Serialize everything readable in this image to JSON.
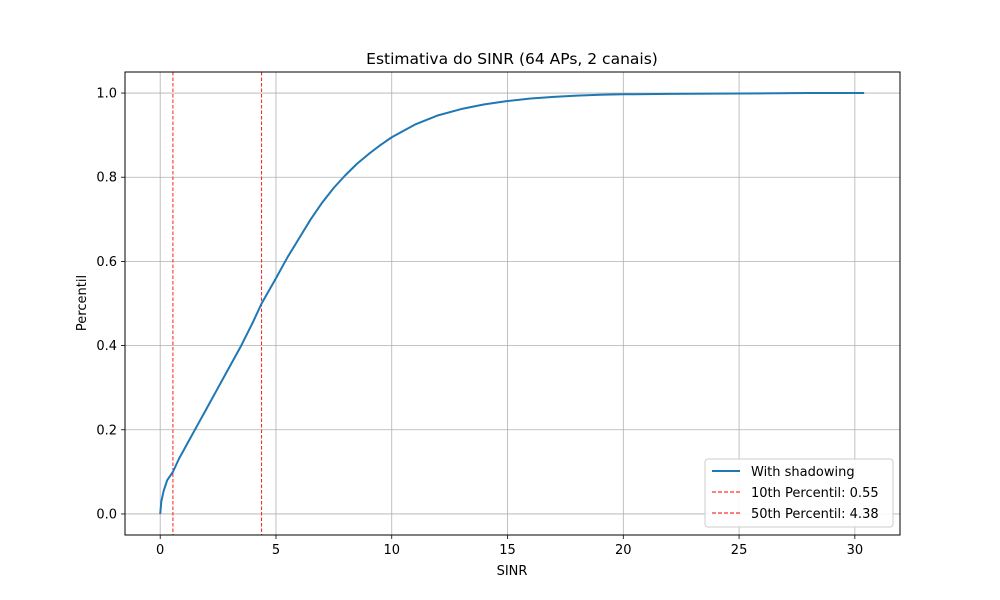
{
  "chart_data": {
    "type": "line",
    "title": "Estimativa do SINR (64 APs, 2 canais)",
    "xlabel": "SINR",
    "ylabel": "Percentil",
    "xlim": [
      -1.52,
      31.95
    ],
    "ylim": [
      -0.05,
      1.05
    ],
    "xticks": [
      0,
      5,
      10,
      15,
      20,
      25,
      30
    ],
    "yticks": [
      0.0,
      0.2,
      0.4,
      0.6,
      0.8,
      1.0
    ],
    "xtick_labels": [
      "0",
      "5",
      "10",
      "15",
      "20",
      "25",
      "30"
    ],
    "ytick_labels": [
      "0.0",
      "0.2",
      "0.4",
      "0.6",
      "0.8",
      "1.0"
    ],
    "grid": true,
    "legend_position": "lower-right",
    "series": [
      {
        "name": "With shadowing",
        "color": "#1f77b4",
        "style": "solid",
        "x": [
          0,
          0.05,
          0.15,
          0.3,
          0.55,
          0.8,
          1.2,
          1.6,
          2.0,
          2.5,
          3.0,
          3.5,
          4.0,
          4.38,
          5.0,
          5.5,
          6.0,
          6.5,
          7.0,
          7.5,
          8.0,
          8.5,
          9.0,
          9.5,
          10.0,
          11.0,
          12.0,
          13.0,
          14.0,
          15.0,
          16.0,
          17.0,
          18.0,
          19.0,
          20.0,
          22.0,
          25.0,
          28.0,
          30.4
        ],
        "y": [
          0.0,
          0.03,
          0.055,
          0.08,
          0.1,
          0.13,
          0.17,
          0.21,
          0.25,
          0.3,
          0.35,
          0.4,
          0.455,
          0.5,
          0.56,
          0.61,
          0.655,
          0.7,
          0.74,
          0.775,
          0.805,
          0.832,
          0.855,
          0.876,
          0.895,
          0.925,
          0.947,
          0.962,
          0.973,
          0.981,
          0.987,
          0.991,
          0.994,
          0.996,
          0.997,
          0.998,
          0.999,
          1.0,
          1.0
        ]
      }
    ],
    "vlines": [
      {
        "name": "10th Percentil: 0.55",
        "x": 0.55,
        "color": "#ff0000",
        "style": "dashed"
      },
      {
        "name": "50th Percentil: 4.38",
        "x": 4.38,
        "color": "#ff0000",
        "style": "dashed"
      }
    ]
  }
}
